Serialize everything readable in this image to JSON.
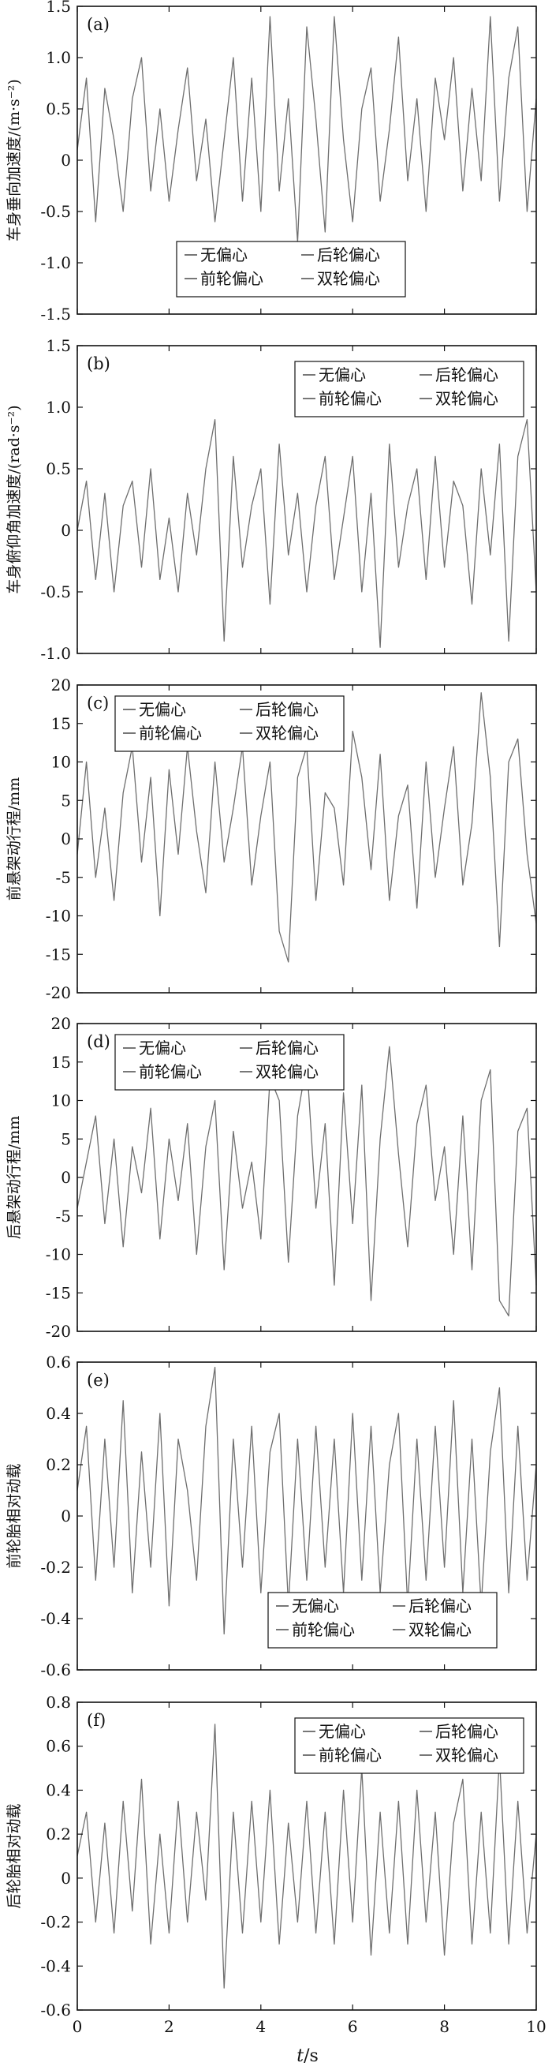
{
  "figure": {
    "x_axis": {
      "label_italic": "t",
      "label_unit": "/s",
      "range": [
        0,
        10
      ],
      "ticks": [
        "0",
        "2",
        "4",
        "6",
        "8",
        "10"
      ]
    }
  },
  "chart_data": [
    {
      "type": "line",
      "panel_label": "(a)",
      "ylabel": "车身垂向加速度/(m·s⁻²)",
      "ylim": [
        -1.5,
        1.5
      ],
      "yticks": [
        "-1.5",
        "-1.0",
        "-0.5",
        "0",
        "0.5",
        "1.0",
        "1.5"
      ],
      "legend": [
        "无偏心",
        "后轮偏心",
        "前轮偏心",
        "双轮偏心"
      ],
      "legend_position": "bottom-center",
      "series_color": "#6e6e6e",
      "x": [
        0,
        0.2,
        0.4,
        0.6,
        0.8,
        1.0,
        1.2,
        1.4,
        1.6,
        1.8,
        2.0,
        2.2,
        2.4,
        2.6,
        2.8,
        3.0,
        3.2,
        3.4,
        3.6,
        3.8,
        4.0,
        4.2,
        4.4,
        4.6,
        4.8,
        5.0,
        5.2,
        5.4,
        5.6,
        5.8,
        6.0,
        6.2,
        6.4,
        6.6,
        6.8,
        7.0,
        7.2,
        7.4,
        7.6,
        7.8,
        8.0,
        8.2,
        8.4,
        8.6,
        8.8,
        9.0,
        9.2,
        9.4,
        9.6,
        9.8,
        10.0
      ],
      "values": [
        0.1,
        0.8,
        -0.6,
        0.7,
        0.2,
        -0.5,
        0.6,
        1.0,
        -0.3,
        0.5,
        -0.4,
        0.3,
        0.9,
        -0.2,
        0.4,
        -0.6,
        0.2,
        1.0,
        -0.4,
        0.8,
        -0.5,
        1.4,
        -0.3,
        0.6,
        -0.8,
        1.3,
        0.4,
        -0.7,
        1.4,
        0.2,
        -0.6,
        0.5,
        0.9,
        -0.4,
        0.3,
        1.2,
        -0.2,
        0.6,
        -0.5,
        0.8,
        0.2,
        1.0,
        -0.3,
        0.7,
        -0.2,
        1.4,
        -0.4,
        0.8,
        1.3,
        -0.5,
        0.6
      ]
    },
    {
      "type": "line",
      "panel_label": "(b)",
      "ylabel": "车身俯仰角加速度/(rad·s⁻²)",
      "ylim": [
        -1.0,
        1.5
      ],
      "yticks": [
        "-1.0",
        "-0.5",
        "0",
        "0.5",
        "1.0",
        "1.5"
      ],
      "legend": [
        "无偏心",
        "后轮偏心",
        "前轮偏心",
        "双轮偏心"
      ],
      "legend_position": "top-right",
      "series_color": "#6e6e6e",
      "x": [
        0,
        0.2,
        0.4,
        0.6,
        0.8,
        1.0,
        1.2,
        1.4,
        1.6,
        1.8,
        2.0,
        2.2,
        2.4,
        2.6,
        2.8,
        3.0,
        3.2,
        3.4,
        3.6,
        3.8,
        4.0,
        4.2,
        4.4,
        4.6,
        4.8,
        5.0,
        5.2,
        5.4,
        5.6,
        5.8,
        6.0,
        6.2,
        6.4,
        6.6,
        6.8,
        7.0,
        7.2,
        7.4,
        7.6,
        7.8,
        8.0,
        8.2,
        8.4,
        8.6,
        8.8,
        9.0,
        9.2,
        9.4,
        9.6,
        9.8,
        10.0
      ],
      "values": [
        0.0,
        0.4,
        -0.4,
        0.3,
        -0.5,
        0.2,
        0.4,
        -0.3,
        0.5,
        -0.4,
        0.1,
        -0.5,
        0.3,
        -0.2,
        0.5,
        0.9,
        -0.9,
        0.6,
        -0.3,
        0.2,
        0.5,
        -0.6,
        0.7,
        -0.2,
        0.3,
        -0.5,
        0.2,
        0.6,
        -0.4,
        0.1,
        0.6,
        -0.5,
        0.3,
        -0.95,
        0.7,
        -0.3,
        0.2,
        0.5,
        -0.4,
        0.6,
        -0.3,
        0.4,
        0.2,
        -0.6,
        0.5,
        -0.2,
        0.7,
        -0.9,
        0.6,
        0.9,
        -0.5
      ]
    },
    {
      "type": "line",
      "panel_label": "(c)",
      "ylabel": "前悬架动行程/mm",
      "ylim": [
        -20,
        20
      ],
      "yticks": [
        "-20",
        "-15",
        "-10",
        "-5",
        "0",
        "5",
        "10",
        "15",
        "20"
      ],
      "legend": [
        "无偏心",
        "后轮偏心",
        "前轮偏心",
        "双轮偏心"
      ],
      "legend_position": "top-left",
      "series_color": "#6e6e6e",
      "x": [
        0,
        0.2,
        0.4,
        0.6,
        0.8,
        1.0,
        1.2,
        1.4,
        1.6,
        1.8,
        2.0,
        2.2,
        2.4,
        2.6,
        2.8,
        3.0,
        3.2,
        3.4,
        3.6,
        3.8,
        4.0,
        4.2,
        4.4,
        4.6,
        4.8,
        5.0,
        5.2,
        5.4,
        5.6,
        5.8,
        6.0,
        6.2,
        6.4,
        6.6,
        6.8,
        7.0,
        7.2,
        7.4,
        7.6,
        7.8,
        8.0,
        8.2,
        8.4,
        8.6,
        8.8,
        9.0,
        9.2,
        9.4,
        9.6,
        9.8,
        10.0
      ],
      "values": [
        -2,
        10,
        -5,
        4,
        -8,
        6,
        12,
        -3,
        8,
        -10,
        9,
        -2,
        12,
        1,
        -7,
        10,
        -3,
        4,
        12,
        -6,
        3,
        10,
        -12,
        -16,
        8,
        12,
        -8,
        6,
        4,
        -6,
        14,
        8,
        -4,
        11,
        -8,
        3,
        7,
        -9,
        10,
        -5,
        4,
        12,
        -6,
        2,
        19,
        8,
        -14,
        10,
        13,
        -2,
        -11
      ]
    },
    {
      "type": "line",
      "panel_label": "(d)",
      "ylabel": "后悬架动行程/mm",
      "ylim": [
        -20,
        20
      ],
      "yticks": [
        "-20",
        "-15",
        "-10",
        "-5",
        "0",
        "5",
        "10",
        "15",
        "20"
      ],
      "legend": [
        "无偏心",
        "后轮偏心",
        "前轮偏心",
        "双轮偏心"
      ],
      "legend_position": "top-left",
      "series_color": "#6e6e6e",
      "x": [
        0,
        0.2,
        0.4,
        0.6,
        0.8,
        1.0,
        1.2,
        1.4,
        1.6,
        1.8,
        2.0,
        2.2,
        2.4,
        2.6,
        2.8,
        3.0,
        3.2,
        3.4,
        3.6,
        3.8,
        4.0,
        4.2,
        4.4,
        4.6,
        4.8,
        5.0,
        5.2,
        5.4,
        5.6,
        5.8,
        6.0,
        6.2,
        6.4,
        6.6,
        6.8,
        7.0,
        7.2,
        7.4,
        7.6,
        7.8,
        8.0,
        8.2,
        8.4,
        8.6,
        8.8,
        9.0,
        9.2,
        9.4,
        9.6,
        9.8,
        10.0
      ],
      "values": [
        -4,
        2,
        8,
        -6,
        5,
        -9,
        4,
        -2,
        9,
        -8,
        5,
        -3,
        7,
        -10,
        4,
        10,
        -12,
        6,
        -4,
        2,
        -8,
        13,
        10,
        -11,
        8,
        15,
        -4,
        7,
        -14,
        11,
        -6,
        12,
        -16,
        5,
        17,
        3,
        -9,
        7,
        12,
        -3,
        4,
        -10,
        8,
        -12,
        10,
        14,
        -16,
        -18,
        6,
        9,
        -14
      ]
    },
    {
      "type": "line",
      "panel_label": "(e)",
      "ylabel": "前轮胎相对动载",
      "ylim": [
        -0.6,
        0.6
      ],
      "yticks": [
        "-0.6",
        "-0.4",
        "-0.2",
        "0",
        "0.2",
        "0.4",
        "0.6"
      ],
      "legend": [
        "无偏心",
        "后轮偏心",
        "前轮偏心",
        "双轮偏心"
      ],
      "legend_position": "bottom-right",
      "series_color": "#6e6e6e",
      "x": [
        0,
        0.2,
        0.4,
        0.6,
        0.8,
        1.0,
        1.2,
        1.4,
        1.6,
        1.8,
        2.0,
        2.2,
        2.4,
        2.6,
        2.8,
        3.0,
        3.2,
        3.4,
        3.6,
        3.8,
        4.0,
        4.2,
        4.4,
        4.6,
        4.8,
        5.0,
        5.2,
        5.4,
        5.6,
        5.8,
        6.0,
        6.2,
        6.4,
        6.6,
        6.8,
        7.0,
        7.2,
        7.4,
        7.6,
        7.8,
        8.0,
        8.2,
        8.4,
        8.6,
        8.8,
        9.0,
        9.2,
        9.4,
        9.6,
        9.8,
        10.0
      ],
      "values": [
        0.1,
        0.35,
        -0.25,
        0.3,
        -0.2,
        0.45,
        -0.3,
        0.25,
        -0.2,
        0.4,
        -0.35,
        0.3,
        0.1,
        -0.25,
        0.35,
        0.58,
        -0.46,
        0.3,
        -0.2,
        0.35,
        -0.3,
        0.25,
        0.4,
        -0.35,
        0.3,
        -0.25,
        0.35,
        -0.2,
        0.3,
        -0.3,
        0.4,
        -0.25,
        0.35,
        -0.3,
        0.2,
        0.4,
        -0.35,
        0.3,
        -0.25,
        0.35,
        -0.2,
        0.45,
        -0.3,
        0.3,
        -0.35,
        0.25,
        0.5,
        -0.3,
        0.35,
        -0.25,
        0.2
      ]
    },
    {
      "type": "line",
      "panel_label": "(f)",
      "ylabel": "后轮胎相对动载",
      "ylim": [
        -0.6,
        0.8
      ],
      "yticks": [
        "-0.6",
        "-0.4",
        "-0.2",
        "0",
        "0.2",
        "0.4",
        "0.6",
        "0.8"
      ],
      "legend": [
        "无偏心",
        "后轮偏心",
        "前轮偏心",
        "双轮偏心"
      ],
      "legend_position": "top-right",
      "series_color": "#6e6e6e",
      "x": [
        0,
        0.2,
        0.4,
        0.6,
        0.8,
        1.0,
        1.2,
        1.4,
        1.6,
        1.8,
        2.0,
        2.2,
        2.4,
        2.6,
        2.8,
        3.0,
        3.2,
        3.4,
        3.6,
        3.8,
        4.0,
        4.2,
        4.4,
        4.6,
        4.8,
        5.0,
        5.2,
        5.4,
        5.6,
        5.8,
        6.0,
        6.2,
        6.4,
        6.6,
        6.8,
        7.0,
        7.2,
        7.4,
        7.6,
        7.8,
        8.0,
        8.2,
        8.4,
        8.6,
        8.8,
        9.0,
        9.2,
        9.4,
        9.6,
        9.8,
        10.0
      ],
      "values": [
        0.1,
        0.3,
        -0.2,
        0.25,
        -0.25,
        0.35,
        -0.15,
        0.45,
        -0.3,
        0.2,
        -0.25,
        0.35,
        -0.2,
        0.3,
        -0.1,
        0.7,
        -0.5,
        0.3,
        -0.25,
        0.35,
        -0.2,
        0.4,
        -0.3,
        0.25,
        -0.2,
        0.35,
        -0.25,
        0.3,
        -0.3,
        0.4,
        -0.2,
        0.5,
        -0.35,
        0.3,
        -0.25,
        0.35,
        -0.3,
        0.4,
        -0.2,
        0.3,
        -0.35,
        0.25,
        0.45,
        -0.3,
        0.3,
        -0.25,
        0.55,
        -0.3,
        0.35,
        -0.25,
        0.2
      ]
    }
  ]
}
